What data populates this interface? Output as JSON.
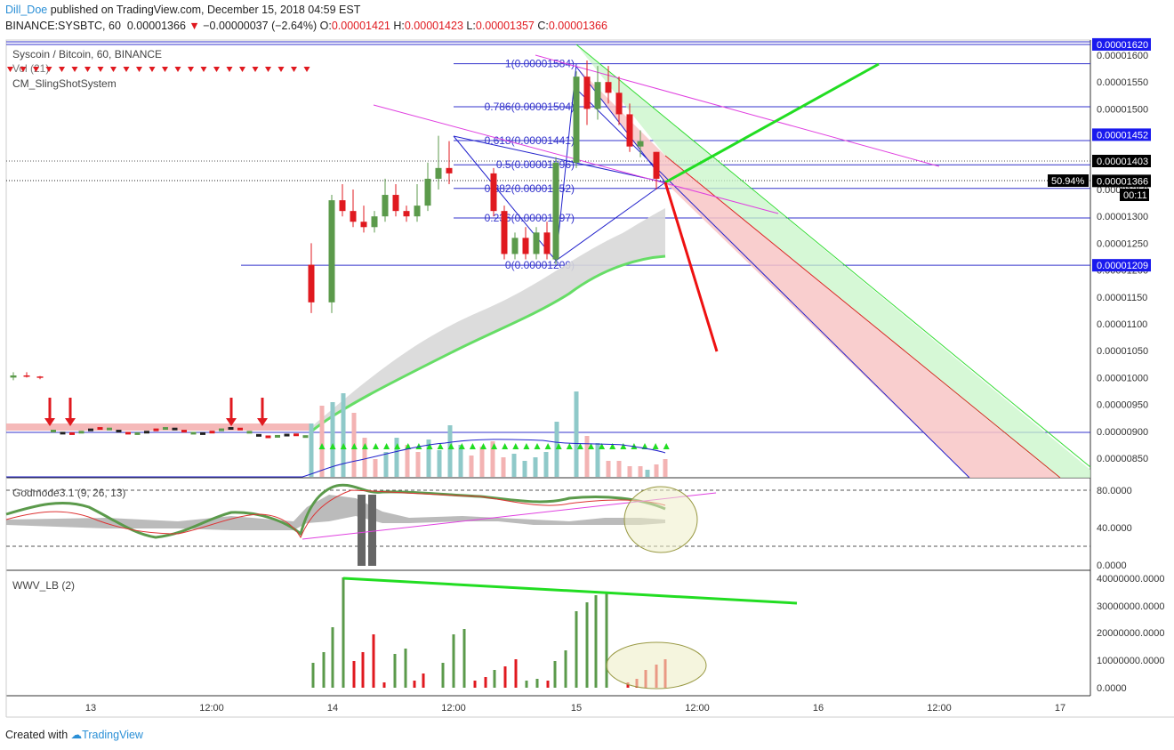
{
  "header": {
    "user": "Dill_Doe",
    "published_text": "published on TradingView.com, December 15, 2018 04:59 EST",
    "symbol": "BINANCE:SYSBTC, 60",
    "price": "0.00001366",
    "change_arrow": "▼",
    "change": "−0.00000037 (−2.64%)",
    "o_label": "O:",
    "o_value": "0.00001421",
    "h_label": "H:",
    "h_value": "0.00001423",
    "l_label": "L:",
    "l_value": "0.00001357",
    "c_label": "C:",
    "c_value": "0.00001366"
  },
  "legend": {
    "title": "Syscoin / Bitcoin, 60, BINANCE",
    "vol": "Vol (21)",
    "indicator": "CM_SlingShotSystem"
  },
  "panes": {
    "osc_label": "Godmode3.1 (9, 26, 13)",
    "wwv_label": "WWV_LB (2)"
  },
  "footer": {
    "created_with": "Created with",
    "brand": "TradingView"
  },
  "colors": {
    "up": "#5b9a4b",
    "down": "#e0191f",
    "green_line": "#22dd22",
    "magenta": "#e040e0",
    "fib": "#3333cc",
    "label_bg": "#1a1aee"
  },
  "chart_data": {
    "type": "candlestick",
    "title": "Syscoin / Bitcoin, 60, BINANCE",
    "x_ticks": [
      "13",
      "12:00",
      "14",
      "12:00",
      "15",
      "12:00",
      "16",
      "12:00",
      "17"
    ],
    "y_ticks": [
      "0.00001600",
      "0.00001550",
      "0.00001500",
      "0.00001450",
      "0.00001400",
      "0.00001350",
      "0.00001300",
      "0.00001250",
      "0.00001200",
      "0.00001150",
      "0.00001100",
      "0.00001050",
      "0.00001000",
      "0.00000950",
      "0.00000900",
      "0.00000850"
    ],
    "y_range": [
      8.1e-06,
      1.63e-05
    ],
    "price_labels": [
      {
        "text": "0.00001620",
        "style": "blue",
        "value": 1.62e-05
      },
      {
        "text": "0.00001452",
        "style": "blue",
        "value": 1.452e-05
      },
      {
        "text": "0.00001403",
        "style": "black",
        "value": 1.403e-05
      },
      {
        "text": "0.00001366",
        "style": "black",
        "value": 1.366e-05
      },
      {
        "text": "0.00001209",
        "style": "blue",
        "value": 1.209e-05
      }
    ],
    "countdown": "00:11",
    "percent_label": "50.94%",
    "fib_levels": [
      {
        "label": "1(0.00001584)",
        "value": 1.584e-05
      },
      {
        "label": "0.786(0.00001504)",
        "value": 1.504e-05
      },
      {
        "label": "0.618(0.00001441)",
        "value": 1.441e-05
      },
      {
        "label": "0.5(0.00001396)",
        "value": 1.396e-05
      },
      {
        "label": "0.382(0.00001352)",
        "value": 1.352e-05
      },
      {
        "label": "0.236(0.00001297)",
        "value": 1.297e-05
      },
      {
        "label": "0(0.00001209)",
        "value": 1.209e-05
      }
    ],
    "candles": [
      [
        1e-05,
        1.01e-05,
        9.95e-06,
        1.004e-05
      ],
      [
        1.004e-05,
        1.01e-05,
        1e-05,
        1.002e-05
      ],
      [
        1.002e-05,
        1.003e-05,
        9.97e-06,
        1e-05
      ],
      [
        1.21e-05,
        1.25e-05,
        1.12e-05,
        1.14e-05
      ],
      [
        1.14e-05,
        1.34e-05,
        1.12e-05,
        1.33e-05
      ],
      [
        1.33e-05,
        1.36e-05,
        1.3e-05,
        1.31e-05
      ],
      [
        1.31e-05,
        1.35e-05,
        1.28e-05,
        1.29e-05
      ],
      [
        1.29e-05,
        1.32e-05,
        1.27e-05,
        1.28e-05
      ],
      [
        1.28e-05,
        1.31e-05,
        1.27e-05,
        1.3e-05
      ],
      [
        1.3e-05,
        1.37e-05,
        1.29e-05,
        1.34e-05
      ],
      [
        1.34e-05,
        1.36e-05,
        1.3e-05,
        1.31e-05
      ],
      [
        1.31e-05,
        1.32e-05,
        1.29e-05,
        1.3e-05
      ],
      [
        1.3e-05,
        1.36e-05,
        1.29e-05,
        1.32e-05
      ],
      [
        1.32e-05,
        1.4e-05,
        1.31e-05,
        1.37e-05
      ],
      [
        1.37e-05,
        1.45e-05,
        1.35e-05,
        1.39e-05
      ],
      [
        1.39e-05,
        1.44e-05,
        1.36e-05,
        1.38e-05
      ],
      [
        1.38e-05,
        1.39e-05,
        1.3e-05,
        1.31e-05
      ],
      [
        1.31e-05,
        1.32e-05,
        1.22e-05,
        1.23e-05
      ],
      [
        1.23e-05,
        1.27e-05,
        1.22e-05,
        1.26e-05
      ],
      [
        1.26e-05,
        1.28e-05,
        1.22e-05,
        1.23e-05
      ],
      [
        1.23e-05,
        1.28e-05,
        1.22e-05,
        1.27e-05
      ],
      [
        1.27e-05,
        1.29e-05,
        1.22e-05,
        1.23e-05
      ],
      [
        1.22e-05,
        1.41e-05,
        1.21e-05,
        1.4e-05
      ],
      [
        1.4e-05,
        1.57e-05,
        1.39e-05,
        1.56e-05
      ],
      [
        1.56e-05,
        1.59e-05,
        1.47e-05,
        1.5e-05
      ],
      [
        1.5e-05,
        1.58e-05,
        1.48e-05,
        1.55e-05
      ],
      [
        1.55e-05,
        1.58e-05,
        1.51e-05,
        1.53e-05
      ],
      [
        1.53e-05,
        1.56e-05,
        1.47e-05,
        1.49e-05
      ],
      [
        1.49e-05,
        1.51e-05,
        1.42e-05,
        1.43e-05
      ],
      [
        1.43e-05,
        1.46e-05,
        1.41e-05,
        1.44e-05
      ],
      [
        1.42e-05,
        1.42e-05,
        1.35e-05,
        1.37e-05
      ]
    ],
    "wwv_ticks": [
      "40000000.0000",
      "30000000.0000",
      "20000000.0000",
      "10000000.0000",
      "0.0000"
    ],
    "osc_ticks": [
      "80.0000",
      "40.0000",
      "0.0000"
    ]
  }
}
